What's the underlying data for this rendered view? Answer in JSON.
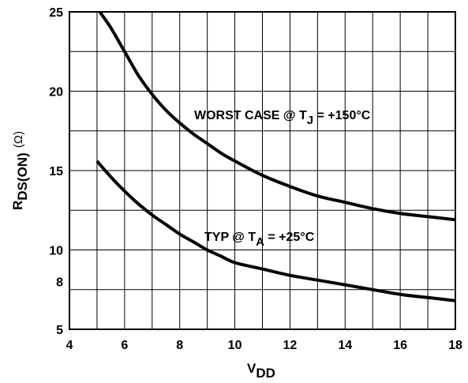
{
  "chart_data": {
    "type": "line",
    "title": "",
    "xlabel": {
      "main": "V",
      "sub": "DD"
    },
    "ylabel": {
      "main": "R",
      "sub": "DS(ON)",
      "unit": "(Ω)"
    },
    "xlim": [
      4,
      18
    ],
    "ylim": [
      5,
      25
    ],
    "x_ticks": [
      4,
      6,
      8,
      10,
      12,
      14,
      16,
      18
    ],
    "y_ticks": [
      5,
      8,
      10,
      15,
      20,
      25
    ],
    "grid": true,
    "series": [
      {
        "name": "WORST CASE @ TJ = +150°C",
        "x": [
          5.1,
          5.5,
          6,
          6.5,
          7,
          7.5,
          8,
          8.5,
          9,
          9.5,
          10,
          11,
          12,
          13,
          14,
          15,
          16,
          17,
          18
        ],
        "y": [
          25,
          24,
          22.5,
          21,
          19.8,
          18.8,
          18,
          17.3,
          16.7,
          16.1,
          15.6,
          14.7,
          14,
          13.4,
          13,
          12.6,
          12.3,
          12.1,
          11.9
        ]
      },
      {
        "name": "TYP @ TA = +25°C",
        "x": [
          5,
          5.5,
          6,
          6.5,
          7,
          7.5,
          8,
          8.5,
          9,
          9.5,
          10,
          11,
          12,
          13,
          14,
          15,
          16,
          17,
          18
        ],
        "y": [
          15.6,
          14.6,
          13.7,
          12.9,
          12.2,
          11.6,
          11,
          10.5,
          10,
          9.6,
          9.2,
          8.8,
          8.4,
          8.1,
          7.8,
          7.5,
          7.2,
          7,
          6.8
        ]
      }
    ],
    "annotations": [
      {
        "id": "worst",
        "main": "WORST CASE @ T",
        "sub": "J",
        "tail": " = +150°C"
      },
      {
        "id": "typ",
        "main": "TYP @ T",
        "sub": "A",
        "tail": " = +25°C"
      }
    ]
  }
}
